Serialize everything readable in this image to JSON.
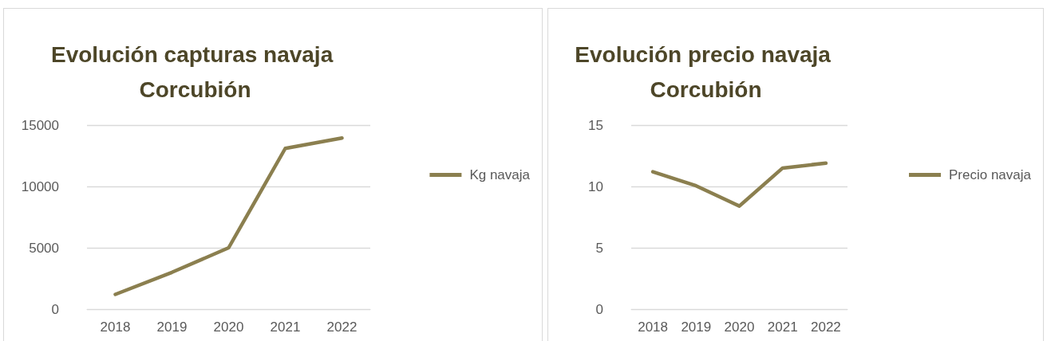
{
  "chart_data": [
    {
      "type": "line",
      "title": "Evolución capturas navaja Corcubión",
      "categories": [
        "2018",
        "2019",
        "2020",
        "2021",
        "2022"
      ],
      "series": [
        {
          "name": "Kg navaja",
          "color": "#8b7f4f",
          "values": [
            1200,
            3000,
            5000,
            13100,
            13950
          ]
        }
      ],
      "ylim": [
        0,
        15000
      ],
      "yticks": [
        0,
        5000,
        10000,
        15000
      ],
      "grid": "y",
      "legend": "right",
      "marker": "none",
      "line_style": "solid"
    },
    {
      "type": "line",
      "title": "Evolución precio navaja Corcubión",
      "categories": [
        "2018",
        "2019",
        "2020",
        "2021",
        "2022"
      ],
      "series": [
        {
          "name": "Precio navaja",
          "color": "#8b7f4f",
          "values": [
            11.2,
            10.05,
            8.4,
            11.5,
            11.9
          ]
        }
      ],
      "ylim": [
        0,
        15
      ],
      "yticks": [
        0,
        5,
        10,
        15
      ],
      "grid": "y",
      "legend": "right",
      "marker": "none",
      "line_style": "solid"
    }
  ]
}
